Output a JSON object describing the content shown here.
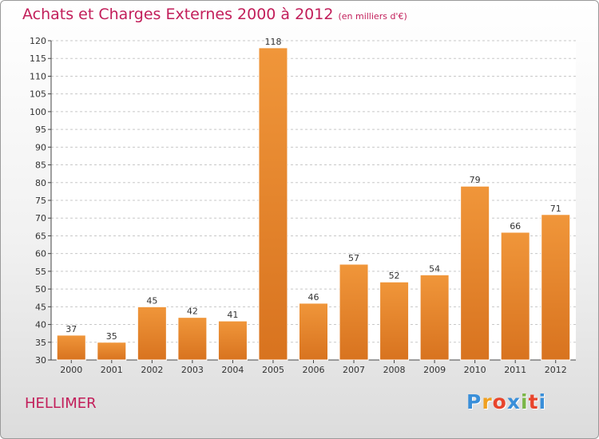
{
  "chart_data": {
    "type": "bar",
    "title": "Achats et Charges Externes 2000 à 2012",
    "subtitle": "(en milliers d'€)",
    "categories": [
      "2000",
      "2001",
      "2002",
      "2003",
      "2004",
      "2005",
      "2006",
      "2007",
      "2008",
      "2009",
      "2010",
      "2011",
      "2012"
    ],
    "values": [
      37,
      35,
      45,
      42,
      41,
      118,
      46,
      57,
      52,
      54,
      79,
      66,
      71
    ],
    "ylim": [
      30,
      120
    ],
    "yticks": [
      30,
      35,
      40,
      45,
      50,
      55,
      60,
      65,
      70,
      75,
      80,
      85,
      90,
      95,
      100,
      105,
      110,
      115,
      120
    ],
    "grid": true,
    "bar_color": "#f0963a",
    "bar_color_dark": "#d8731f"
  },
  "footer": {
    "place": "HELLIMER",
    "logo_letters": [
      "P",
      "r",
      "o",
      "x",
      "i",
      "t",
      "i"
    ],
    "logo_colors": [
      "#3a8fd9",
      "#f0a020",
      "#e8452c",
      "#3a8fd9",
      "#7ab648",
      "#e8452c",
      "#3a8fd9"
    ]
  }
}
